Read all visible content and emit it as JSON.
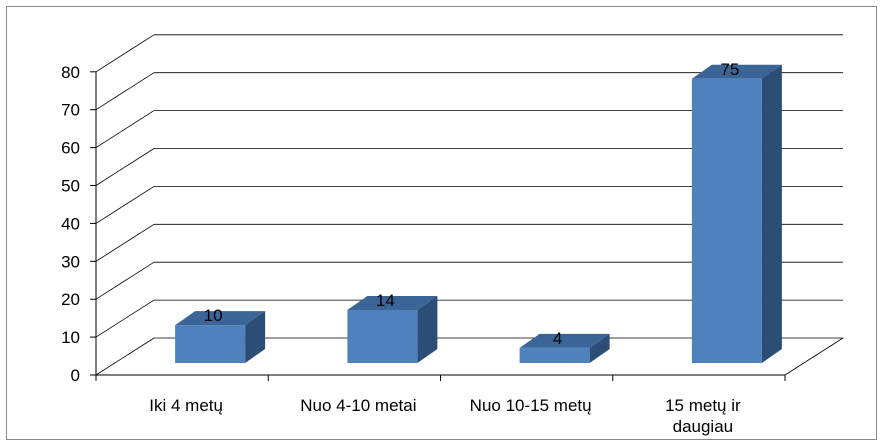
{
  "chart_data": {
    "type": "bar",
    "title": "",
    "xlabel": "",
    "ylabel": "",
    "ylim": [
      0,
      80
    ],
    "yticks": [
      "0",
      "10",
      "20",
      "30",
      "40",
      "50",
      "60",
      "70",
      "80"
    ],
    "categories": [
      [
        "Iki 4 metų"
      ],
      [
        "Nuo 4-10 metai"
      ],
      [
        "Nuo 10-15 metų"
      ],
      [
        "15 metų ir",
        "daugiau"
      ]
    ],
    "values": [
      10,
      14,
      4,
      75
    ],
    "data_labels": [
      "10",
      "14",
      "4",
      "75"
    ],
    "grid": true,
    "legend": "none",
    "colors": {
      "bar_front": "#4f81bd",
      "bar_side": "#2c4d75",
      "bar_top": "#3b6597",
      "grid": "#000000"
    }
  }
}
